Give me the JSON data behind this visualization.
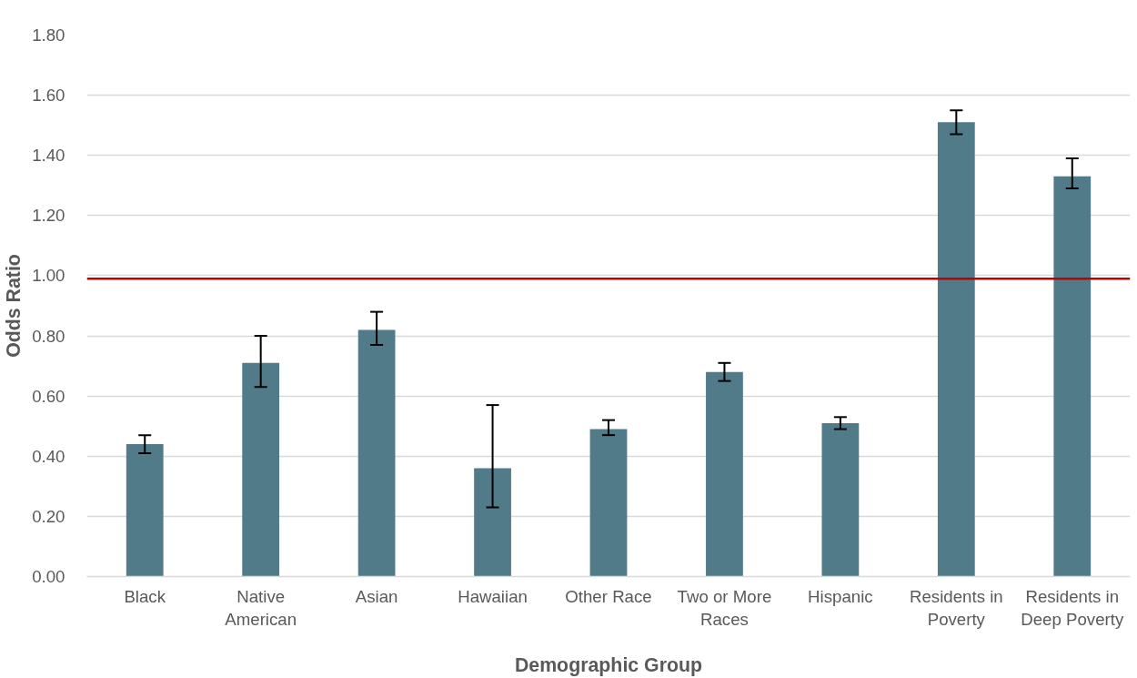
{
  "chart_data": {
    "type": "bar",
    "xlabel": "Demographic Group",
    "ylabel": "Odds Ratio",
    "categories": [
      "Black",
      "Native American",
      "Asian",
      "Hawaiian",
      "Other Race",
      "Two or More Races",
      "Hispanic",
      "Residents in Poverty",
      "Residents in Deep Poverty"
    ],
    "values": [
      0.44,
      0.71,
      0.82,
      0.36,
      0.49,
      0.68,
      0.51,
      1.51,
      1.33
    ],
    "errors": [
      [
        0.41,
        0.47
      ],
      [
        0.63,
        0.8
      ],
      [
        0.77,
        0.88
      ],
      [
        0.23,
        0.57
      ],
      [
        0.47,
        0.52
      ],
      [
        0.65,
        0.71
      ],
      [
        0.49,
        0.53
      ],
      [
        1.47,
        1.55
      ],
      [
        1.29,
        1.39
      ]
    ],
    "color": "#527b8a",
    "ylim": [
      0,
      1.8
    ],
    "yticks": [
      {
        "value": 0,
        "label": "0.00"
      },
      {
        "value": 0.2,
        "label": "0.20"
      },
      {
        "value": 0.4,
        "label": "0.40"
      },
      {
        "value": 0.6,
        "label": "0.60"
      },
      {
        "value": 0.8,
        "label": "0.80"
      },
      {
        "value": 1.0,
        "label": "1.00"
      },
      {
        "value": 1.2,
        "label": "1.20"
      },
      {
        "value": 1.4,
        "label": "1.40"
      },
      {
        "value": 1.6,
        "label": "1.60"
      },
      {
        "value": 1.8,
        "label": "1.80"
      }
    ],
    "ref_lines": [
      {
        "axis": "y",
        "value": 0.99,
        "color": "#c00000"
      }
    ],
    "grid": "y"
  }
}
